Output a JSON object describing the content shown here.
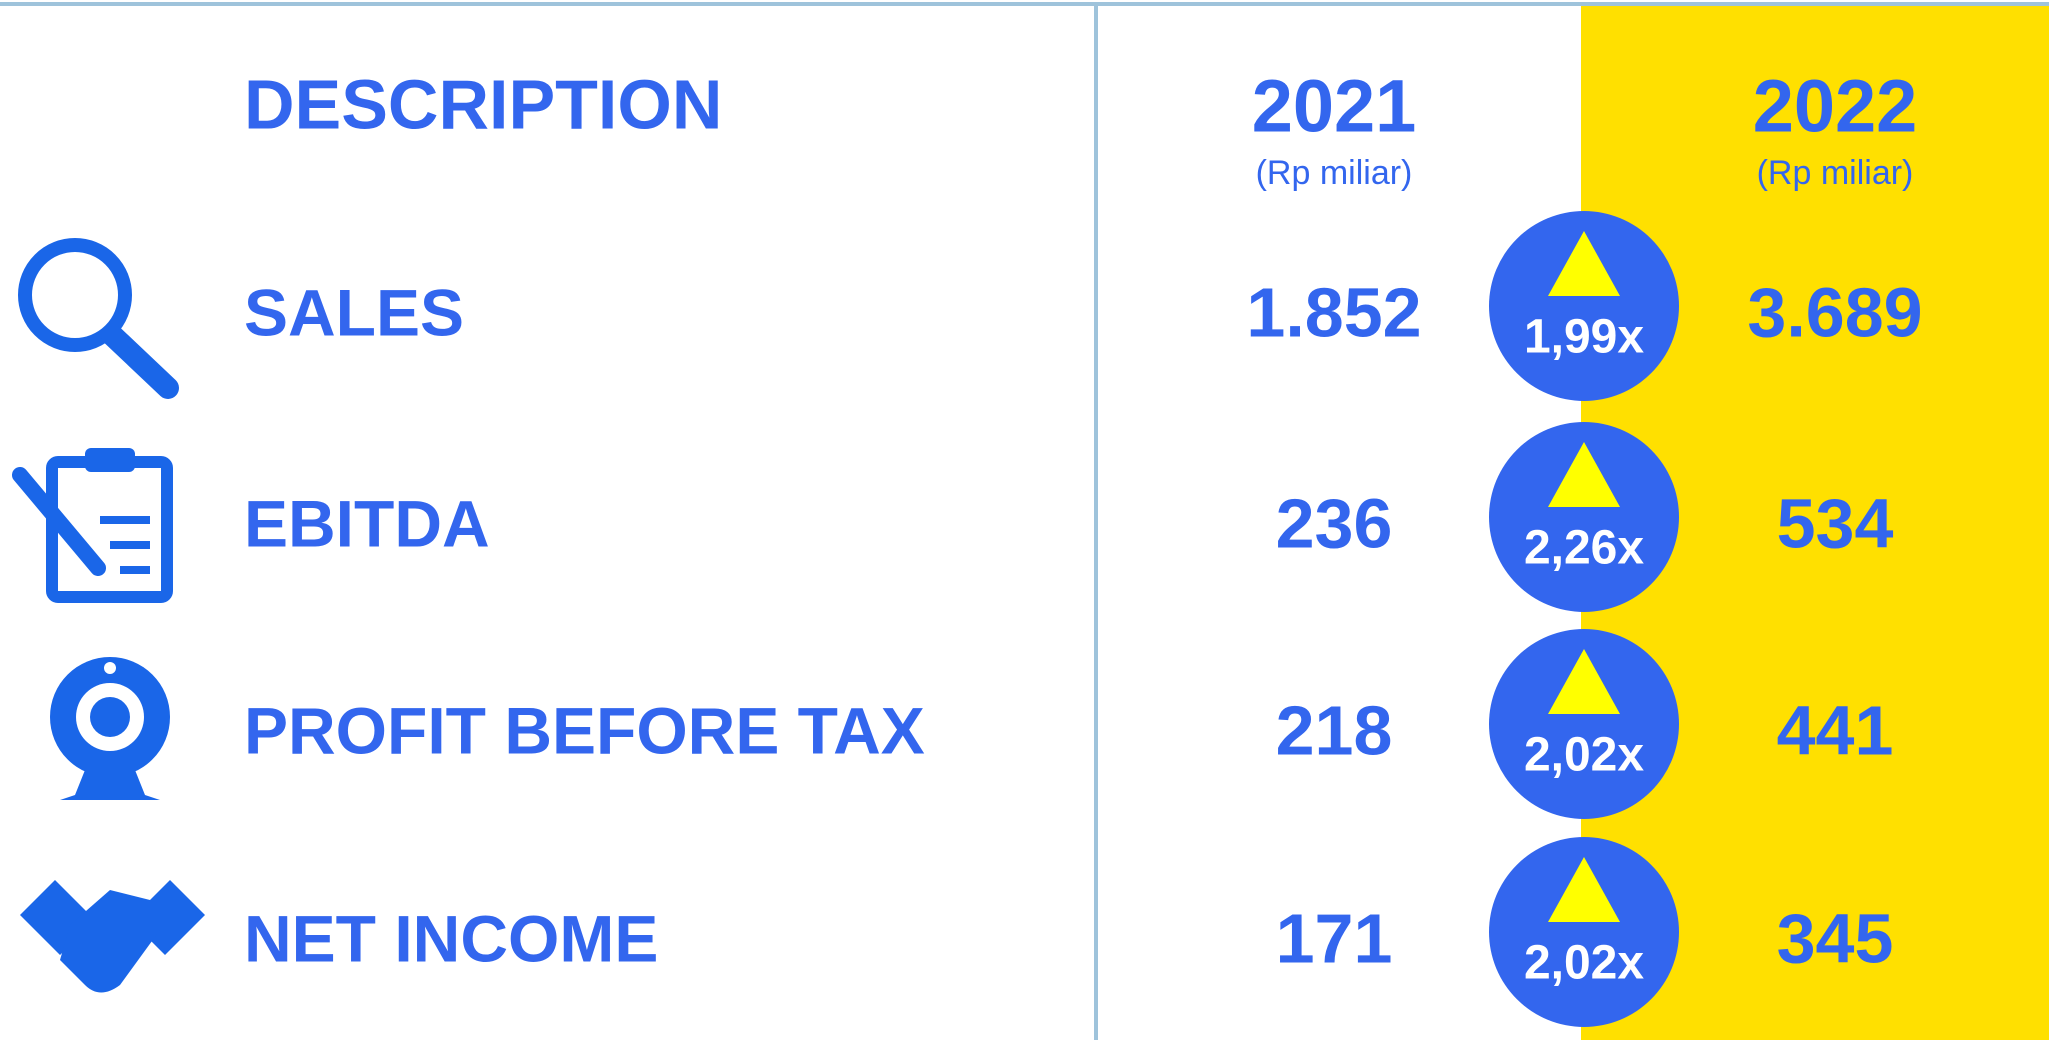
{
  "header": {
    "description": "DESCRIPTION",
    "years": [
      {
        "year": "2021",
        "unit": "(Rp miliar)"
      },
      {
        "year": "2022",
        "unit": "(Rp miliar)"
      }
    ]
  },
  "table": {
    "rows": [
      {
        "label": "SALES",
        "v2021": "1.852",
        "growth": "1,99x",
        "v2022": "3.689"
      },
      {
        "label": "EBITDA",
        "v2021": "236",
        "growth": "2,26x",
        "v2022": "534"
      },
      {
        "label": "PROFIT BEFORE TAX",
        "v2021": "218",
        "growth": "2,02x",
        "v2022": "441"
      },
      {
        "label": "NET INCOME",
        "v2021": "171",
        "growth": "2,02x",
        "v2022": "345"
      }
    ]
  }
}
